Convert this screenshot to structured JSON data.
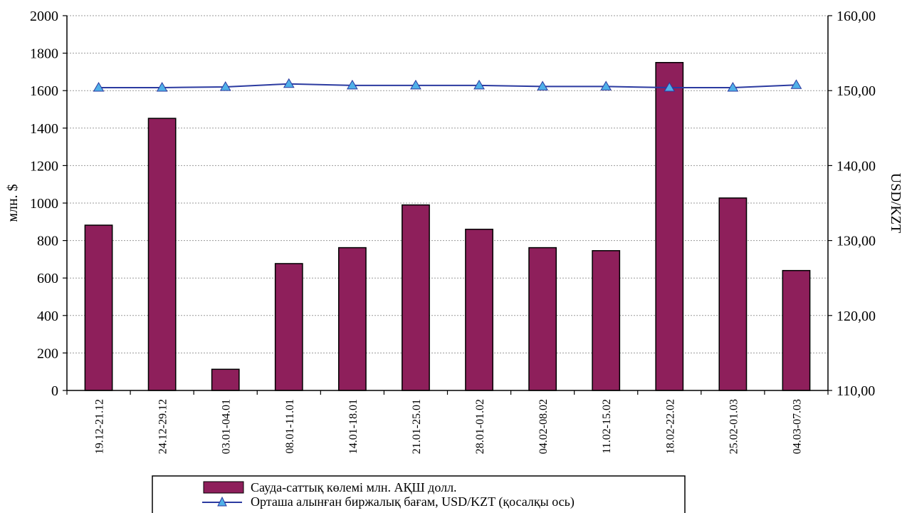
{
  "chart_data": {
    "type": "bar",
    "categories": [
      "19.12-21.12",
      "24.12-29.12",
      "03.01-04.01",
      "08.01-11.01",
      "14.01-18.01",
      "21.01-25.01",
      "28.01-01.02",
      "04.02-08.02",
      "11.02-15.02",
      "18.02-22.02",
      "25.02-01.03",
      "04.03-07.03"
    ],
    "series": [
      {
        "name": "Сауда-саттық көлемі млн. АҚШ долл.",
        "type": "bar",
        "axis": "left",
        "color": "#8e1f5b",
        "values": [
          882,
          1452,
          113,
          677,
          762,
          990,
          860,
          762,
          746,
          1750,
          1027,
          640
        ]
      },
      {
        "name": "Орташа алынған  биржалық бағам, USD/KZT (қосалқы ось)",
        "type": "line",
        "axis": "right",
        "color": "#2b3aa0",
        "marker_color": "#4fb0e8",
        "values": [
          150.4,
          150.4,
          150.5,
          150.9,
          150.7,
          150.7,
          150.7,
          150.55,
          150.55,
          150.4,
          150.4,
          150.75
        ]
      }
    ],
    "ylabel": "млн. $",
    "y2label": "USD/KZT",
    "ylim": [
      0,
      2000
    ],
    "y2lim": [
      110,
      160
    ],
    "yticks": [
      "0",
      "200",
      "400",
      "600",
      "800",
      "1000",
      "1200",
      "1400",
      "1600",
      "1800",
      "2000"
    ],
    "y2ticks": [
      "110,00",
      "120,00",
      "130,00",
      "140,00",
      "150,00",
      "160,00"
    ],
    "grid": true,
    "legend_position": "bottom"
  }
}
